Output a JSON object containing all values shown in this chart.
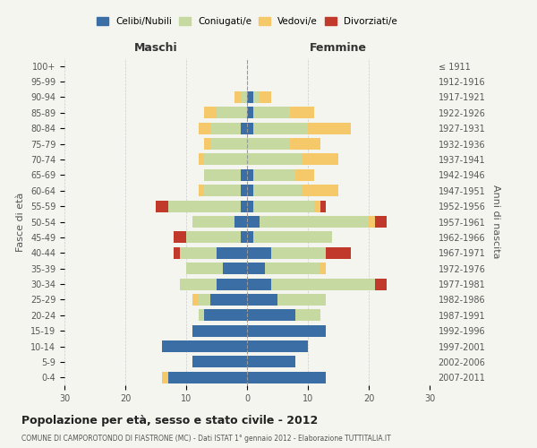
{
  "age_groups": [
    "0-4",
    "5-9",
    "10-14",
    "15-19",
    "20-24",
    "25-29",
    "30-34",
    "35-39",
    "40-44",
    "45-49",
    "50-54",
    "55-59",
    "60-64",
    "65-69",
    "70-74",
    "75-79",
    "80-84",
    "85-89",
    "90-94",
    "95-99",
    "100+"
  ],
  "birth_years": [
    "2007-2011",
    "2002-2006",
    "1997-2001",
    "1992-1996",
    "1987-1991",
    "1982-1986",
    "1977-1981",
    "1972-1976",
    "1967-1971",
    "1962-1966",
    "1957-1961",
    "1952-1956",
    "1947-1951",
    "1942-1946",
    "1937-1941",
    "1932-1936",
    "1927-1931",
    "1922-1926",
    "1917-1921",
    "1912-1916",
    "≤ 1911"
  ],
  "maschi_celibi": [
    13,
    9,
    14,
    9,
    7,
    6,
    5,
    4,
    5,
    1,
    2,
    1,
    1,
    1,
    0,
    0,
    1,
    0,
    0,
    0,
    0
  ],
  "maschi_coniugati": [
    0,
    0,
    0,
    0,
    1,
    2,
    6,
    6,
    6,
    9,
    7,
    12,
    6,
    6,
    7,
    6,
    5,
    5,
    1,
    0,
    0
  ],
  "maschi_vedovi": [
    1,
    0,
    0,
    0,
    0,
    1,
    0,
    0,
    0,
    0,
    0,
    0,
    1,
    0,
    1,
    1,
    2,
    2,
    1,
    0,
    0
  ],
  "maschi_divorziati": [
    0,
    0,
    0,
    0,
    0,
    0,
    0,
    0,
    1,
    2,
    0,
    2,
    0,
    0,
    0,
    0,
    0,
    0,
    0,
    0,
    0
  ],
  "femmine_celibi": [
    13,
    8,
    10,
    13,
    8,
    5,
    4,
    3,
    4,
    1,
    2,
    1,
    1,
    1,
    0,
    0,
    1,
    1,
    1,
    0,
    0
  ],
  "femmine_coniugati": [
    0,
    0,
    0,
    0,
    4,
    8,
    17,
    9,
    9,
    13,
    18,
    10,
    8,
    7,
    9,
    7,
    9,
    6,
    1,
    0,
    0
  ],
  "femmine_vedovi": [
    0,
    0,
    0,
    0,
    0,
    0,
    0,
    1,
    0,
    0,
    1,
    1,
    6,
    3,
    6,
    5,
    7,
    4,
    2,
    0,
    0
  ],
  "femmine_divorziati": [
    0,
    0,
    0,
    0,
    0,
    0,
    2,
    0,
    4,
    0,
    2,
    1,
    0,
    0,
    0,
    0,
    0,
    0,
    0,
    0,
    0
  ],
  "colors": {
    "celibi": "#3a6ea5",
    "coniugati": "#c5d9a0",
    "vedovi": "#f5c96a",
    "divorziati": "#c0392b"
  },
  "title": "Popolazione per età, sesso e stato civile - 2012",
  "subtitle": "COMUNE DI CAMPOROTONDO DI FIASTRONE (MC) - Dati ISTAT 1° gennaio 2012 - Elaborazione TUTTITALIA.IT",
  "xlabel_left": "Maschi",
  "xlabel_right": "Femmine",
  "ylabel_left": "Fasce di età",
  "ylabel_right": "Anni di nascita",
  "xlim": 30,
  "legend_labels": [
    "Celibi/Nubili",
    "Coniugati/e",
    "Vedovi/e",
    "Divorziati/e"
  ],
  "bg_color": "#f5f5f0",
  "grid_color": "#cccccc"
}
